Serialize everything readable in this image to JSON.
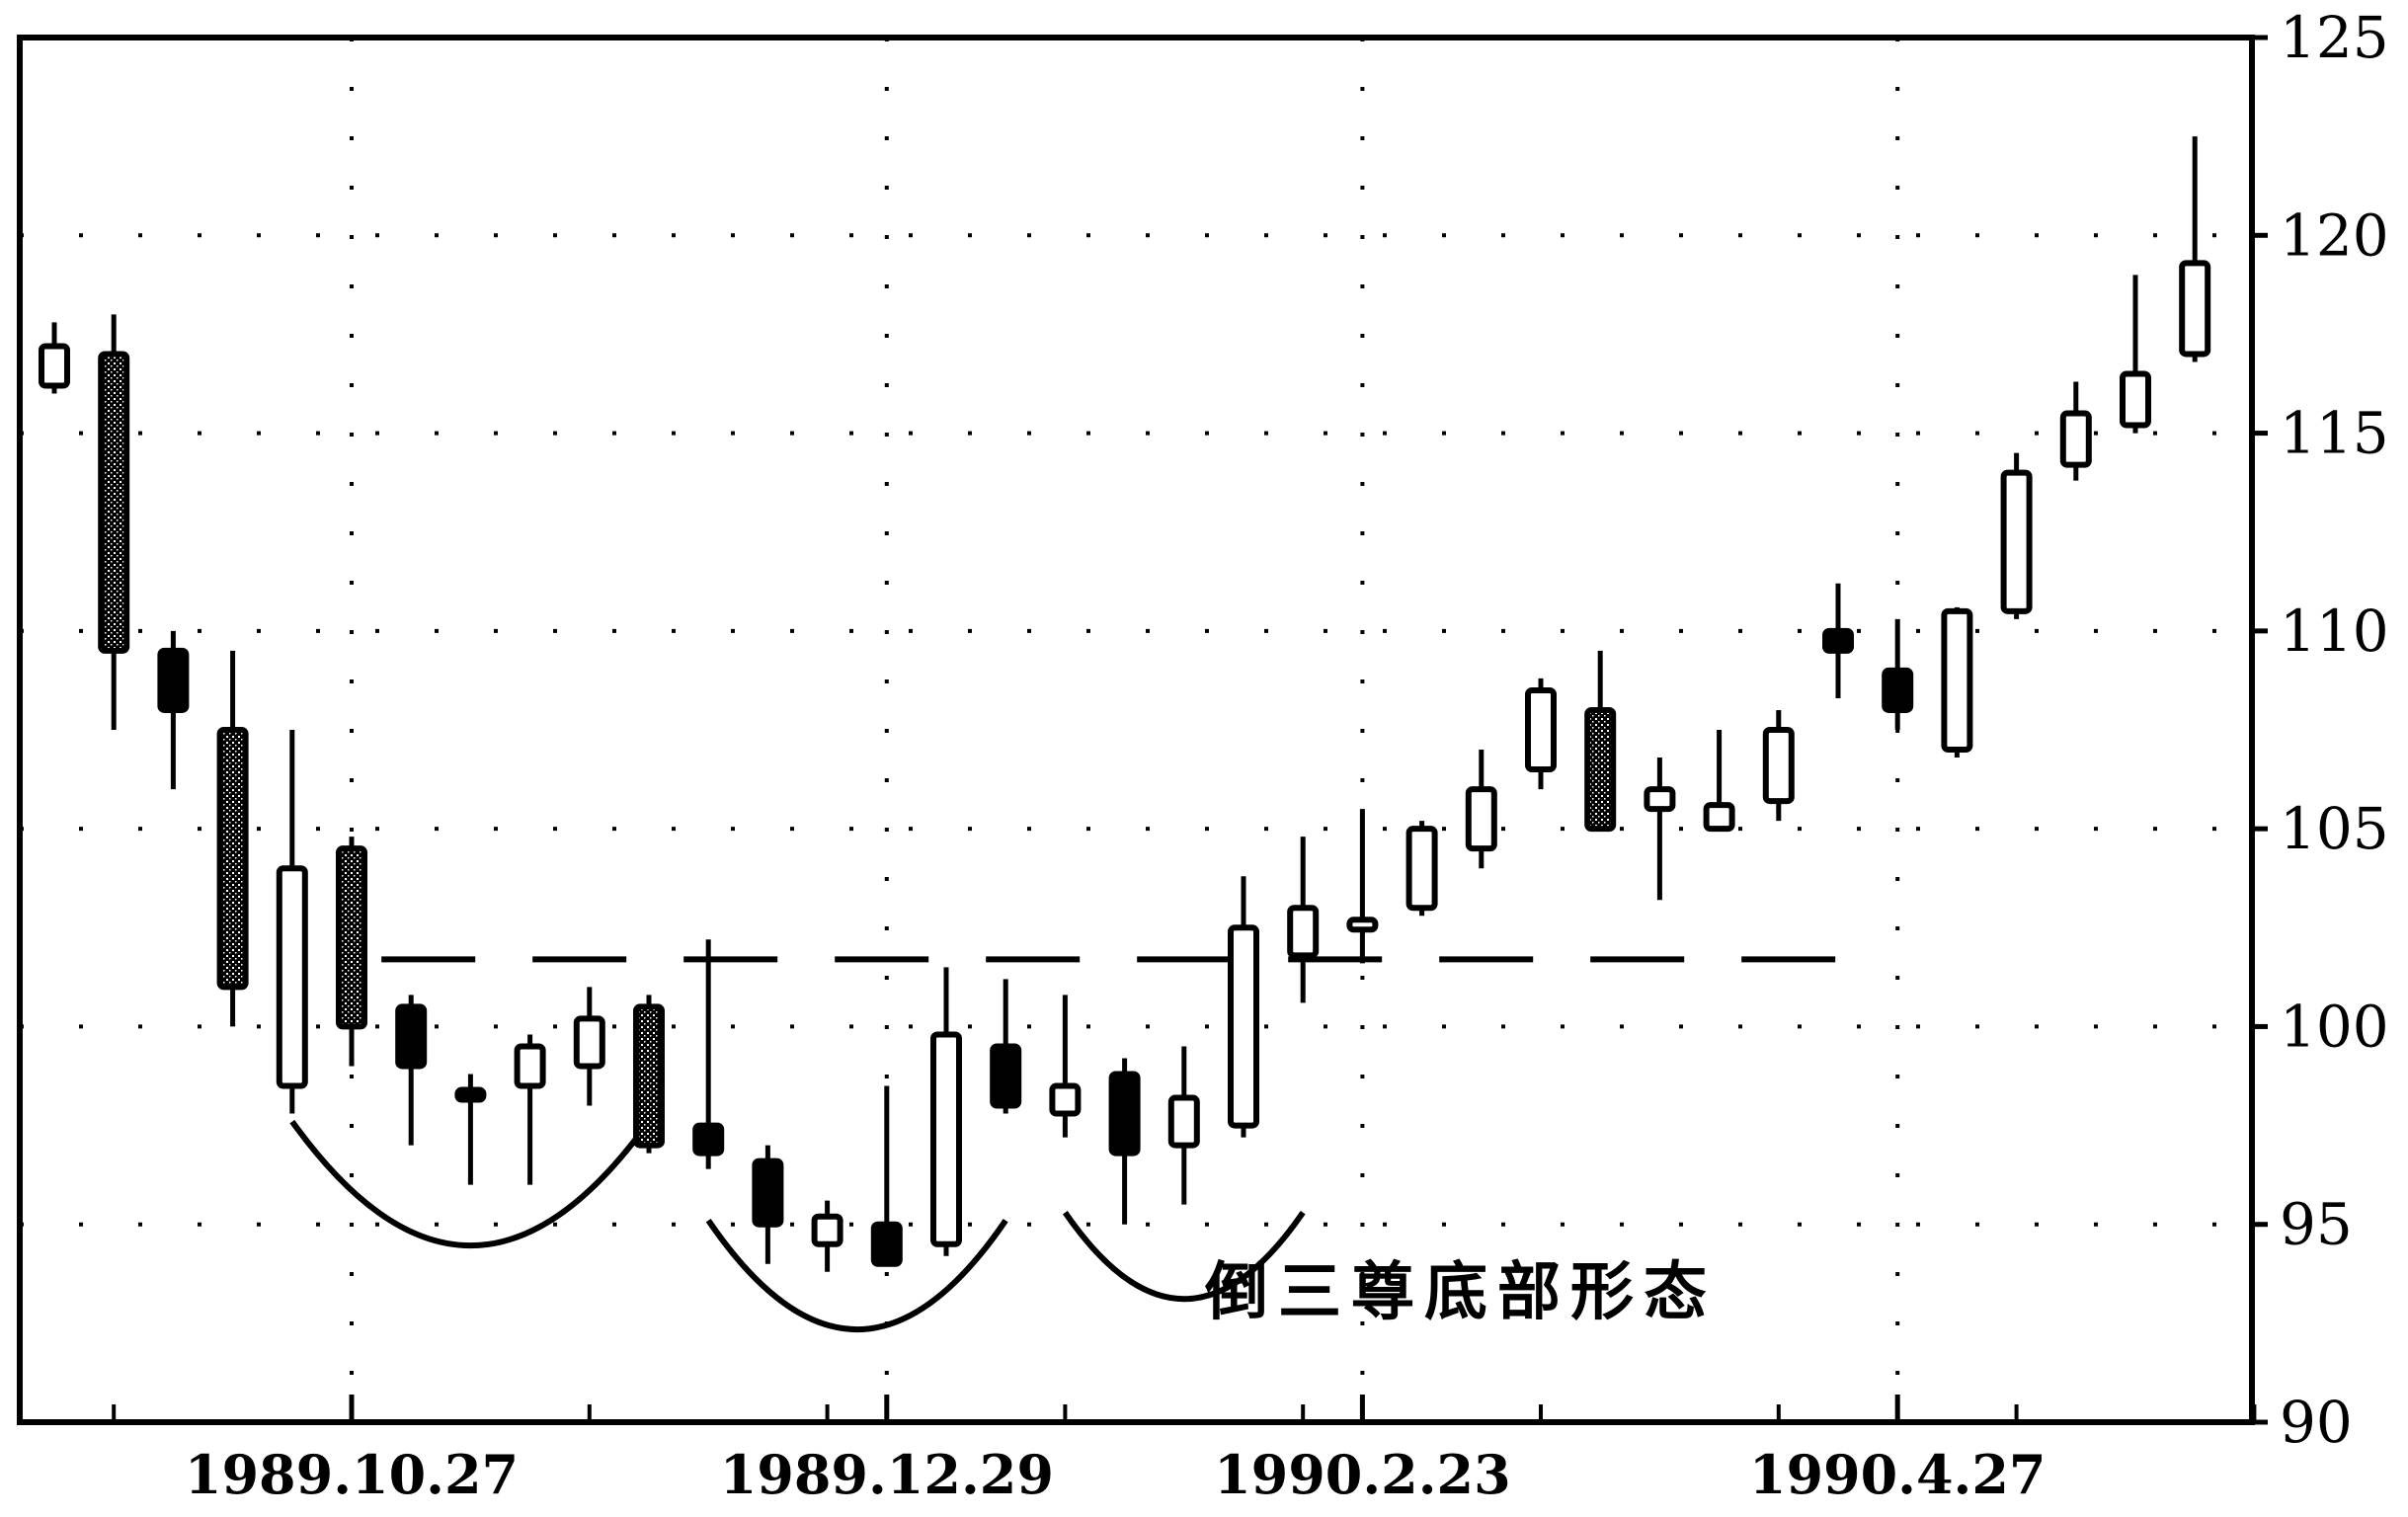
{
  "chart_data": {
    "type": "candlestick",
    "title": "",
    "xlabel": "",
    "ylabel": "",
    "ylim": [
      90,
      125
    ],
    "y_ticks": [
      90,
      95,
      100,
      105,
      110,
      115,
      120,
      125
    ],
    "y_tick_labels": [
      "90",
      "95",
      "100",
      "105",
      "110",
      "115",
      "120",
      "125"
    ],
    "x_labels": [
      {
        "index": 5,
        "label": "1989.10.27"
      },
      {
        "index": 14,
        "label": "1989.12.29"
      },
      {
        "index": 22,
        "label": "1990.2.23"
      },
      {
        "index": 31,
        "label": "1990.4.27"
      }
    ],
    "grid": true,
    "resistance_level": 101.7,
    "annotation": "倒三尊底部形态",
    "colors": {
      "line": "#000000",
      "background": "#ffffff",
      "body_fill_dark": "#000000",
      "body_fill_hatched": "#555555"
    },
    "candles": [
      {
        "o": 116.2,
        "c": 117.2,
        "h": 117.8,
        "l": 116.0,
        "fill": "hollow"
      },
      {
        "o": 117.0,
        "c": 109.5,
        "h": 118.0,
        "l": 107.5,
        "fill": "hatched"
      },
      {
        "o": 109.5,
        "c": 108.0,
        "h": 110.0,
        "l": 106.0,
        "fill": "dark"
      },
      {
        "o": 107.5,
        "c": 101.0,
        "h": 109.5,
        "l": 100.0,
        "fill": "hatched"
      },
      {
        "o": 98.5,
        "c": 104.0,
        "h": 107.5,
        "l": 97.8,
        "fill": "hollow"
      },
      {
        "o": 104.5,
        "c": 100.0,
        "h": 104.8,
        "l": 99.0,
        "fill": "hatched"
      },
      {
        "o": 99.0,
        "c": 100.5,
        "h": 100.8,
        "l": 97.0,
        "fill": "dark"
      },
      {
        "o": 98.2,
        "c": 98.4,
        "h": 98.8,
        "l": 96.0,
        "fill": "dark"
      },
      {
        "o": 98.5,
        "c": 99.5,
        "h": 99.8,
        "l": 96.0,
        "fill": "hollow"
      },
      {
        "o": 99.0,
        "c": 100.2,
        "h": 101.0,
        "l": 98.0,
        "fill": "hollow"
      },
      {
        "o": 100.5,
        "c": 97.0,
        "h": 100.8,
        "l": 96.8,
        "fill": "hatched"
      },
      {
        "o": 97.5,
        "c": 96.8,
        "h": 102.2,
        "l": 96.4,
        "fill": "dark"
      },
      {
        "o": 96.6,
        "c": 95.0,
        "h": 97.0,
        "l": 94.0,
        "fill": "dark"
      },
      {
        "o": 94.5,
        "c": 95.2,
        "h": 95.6,
        "l": 93.8,
        "fill": "hollow"
      },
      {
        "o": 95.0,
        "c": 94.0,
        "h": 98.5,
        "l": 94.0,
        "fill": "dark"
      },
      {
        "o": 94.5,
        "c": 99.8,
        "h": 101.5,
        "l": 94.2,
        "fill": "hollow"
      },
      {
        "o": 99.5,
        "c": 98.0,
        "h": 101.2,
        "l": 97.8,
        "fill": "dark"
      },
      {
        "o": 97.8,
        "c": 98.5,
        "h": 100.8,
        "l": 97.2,
        "fill": "hollow"
      },
      {
        "o": 98.8,
        "c": 96.8,
        "h": 99.2,
        "l": 95.0,
        "fill": "dark"
      },
      {
        "o": 97.0,
        "c": 98.2,
        "h": 99.5,
        "l": 95.5,
        "fill": "hollow"
      },
      {
        "o": 97.5,
        "c": 102.5,
        "h": 103.8,
        "l": 97.2,
        "fill": "hollow"
      },
      {
        "o": 101.8,
        "c": 103.0,
        "h": 104.8,
        "l": 100.6,
        "fill": "hollow"
      },
      {
        "o": 102.5,
        "c": 102.7,
        "h": 105.5,
        "l": 101.6,
        "fill": "hollow"
      },
      {
        "o": 103.0,
        "c": 105.0,
        "h": 105.2,
        "l": 102.8,
        "fill": "hollow"
      },
      {
        "o": 104.5,
        "c": 106.0,
        "h": 107.0,
        "l": 104.0,
        "fill": "hollow"
      },
      {
        "o": 106.5,
        "c": 108.5,
        "h": 108.8,
        "l": 106.0,
        "fill": "hollow"
      },
      {
        "o": 108.0,
        "c": 105.0,
        "h": 109.5,
        "l": 105.0,
        "fill": "hatched"
      },
      {
        "o": 105.5,
        "c": 106.0,
        "h": 106.8,
        "l": 103.2,
        "fill": "hollow"
      },
      {
        "o": 105.0,
        "c": 105.6,
        "h": 107.5,
        "l": 105.0,
        "fill": "hollow"
      },
      {
        "o": 105.7,
        "c": 107.5,
        "h": 108.0,
        "l": 105.2,
        "fill": "hollow"
      },
      {
        "o": 110.0,
        "c": 109.5,
        "h": 111.2,
        "l": 108.3,
        "fill": "dark"
      },
      {
        "o": 109.0,
        "c": 108.0,
        "h": 110.3,
        "l": 107.5,
        "fill": "dark"
      },
      {
        "o": 107.0,
        "c": 110.5,
        "h": 110.6,
        "l": 106.8,
        "fill": "hollow"
      },
      {
        "o": 110.5,
        "c": 114.0,
        "h": 114.5,
        "l": 110.3,
        "fill": "hollow"
      },
      {
        "o": 114.2,
        "c": 115.5,
        "h": 116.3,
        "l": 113.8,
        "fill": "hollow"
      },
      {
        "o": 115.2,
        "c": 116.5,
        "h": 119.0,
        "l": 115.0,
        "fill": "hollow"
      },
      {
        "o": 117.0,
        "c": 119.3,
        "h": 122.5,
        "l": 116.8,
        "fill": "hollow"
      }
    ]
  }
}
